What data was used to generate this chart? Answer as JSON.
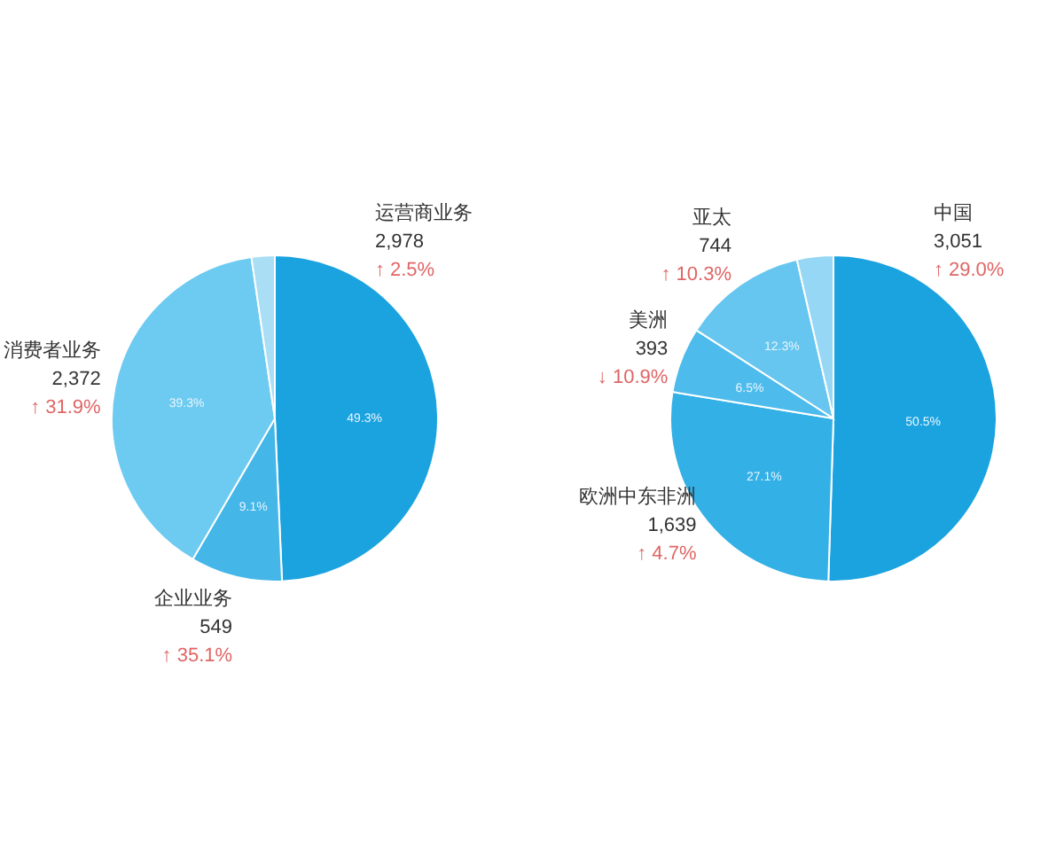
{
  "chart_data": [
    {
      "type": "pie",
      "categories": [
        "运营商业务",
        "企业业务",
        "消费者业务",
        null
      ],
      "values": [
        49.3,
        9.1,
        39.3,
        2.3
      ],
      "colors": [
        "#1ba3e0",
        "#44b6e8",
        "#6dcaf0",
        "#a9def5"
      ],
      "value_labels": [
        "49.3%",
        "9.1%",
        "39.3%",
        null
      ],
      "annotations": [
        "2,978",
        "↑ 2.5%",
        "549",
        "↑ 35.1%",
        "2,372",
        "↑ 31.9%"
      ]
    },
    {
      "type": "pie",
      "categories": [
        "中国",
        "欧洲中东非洲",
        "美洲",
        "亚太",
        null
      ],
      "values": [
        50.5,
        27.1,
        6.5,
        12.3,
        3.6
      ],
      "colors": [
        "#1ba3e0",
        "#33b0e6",
        "#4dbbec",
        "#66c6ef",
        "#95d7f4"
      ],
      "value_labels": [
        "50.5%",
        "27.1%",
        "6.5%",
        "12.3%",
        null
      ],
      "annotations": [
        "3,051",
        "↑ 29.0%",
        "1,639",
        "↑ 4.7%",
        "393",
        "↓ 10.9%",
        "744",
        "↑ 10.3%"
      ]
    }
  ]
}
